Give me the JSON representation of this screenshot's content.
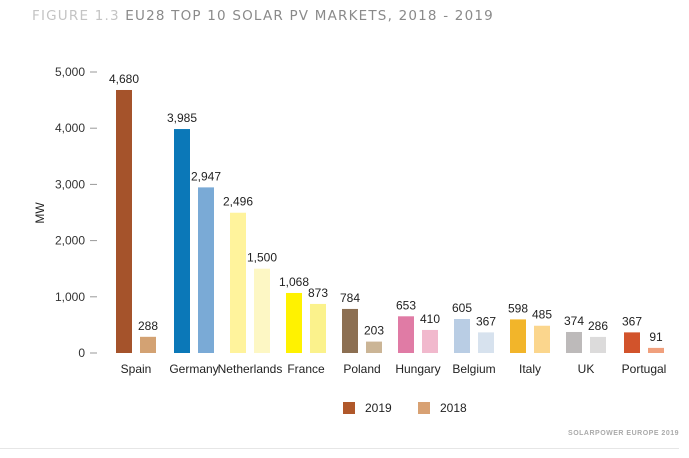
{
  "title": {
    "figure": "FIGURE 1.3",
    "text": "EU28 TOP 10 SOLAR PV MARKETS, 2018 - 2019"
  },
  "footer": "SOLARPOWER EUROPE 2019",
  "chart_data": {
    "type": "bar",
    "title": "EU28 TOP 10 SOLAR PV MARKETS, 2018 - 2019",
    "ylabel": "MW",
    "xlabel": "",
    "ylim": [
      0,
      5000
    ],
    "yticks": [
      0,
      1000,
      2000,
      3000,
      4000,
      5000
    ],
    "ytick_labels": [
      "0",
      "1,000",
      "2,000",
      "3,000",
      "4,000",
      "5,000"
    ],
    "grid": false,
    "legend": "bottom",
    "categories": [
      "Spain",
      "Germany",
      "Netherlands",
      "France",
      "Poland",
      "Hungary",
      "Belgium",
      "Italy",
      "UK",
      "Portugal"
    ],
    "series": [
      {
        "name": "2019",
        "values": [
          4680,
          3985,
          2496,
          1068,
          784,
          653,
          605,
          598,
          374,
          367
        ],
        "labels": [
          "4,680",
          "3,985",
          "2,496",
          "1,068",
          "784",
          "653",
          "605",
          "598",
          "374",
          "367"
        ],
        "colors": [
          "#a5532b",
          "#0b78b8",
          "#fff39c",
          "#fff200",
          "#8c6f52",
          "#e07ba5",
          "#b9cde4",
          "#f2b52a",
          "#bdbaba",
          "#d2532b"
        ],
        "legend_color": "#b0582a"
      },
      {
        "name": "2018",
        "values": [
          288,
          2947,
          1500,
          873,
          203,
          410,
          367,
          485,
          286,
          91
        ],
        "labels": [
          "288",
          "2,947",
          "1,500",
          "873",
          "203",
          "410",
          "367",
          "485",
          "286",
          "91"
        ],
        "colors": [
          "#d3a273",
          "#7aaad6",
          "#fdf7c4",
          "#fbf28c",
          "#cbb596",
          "#f1b9cd",
          "#d7e2ee",
          "#fbd68d",
          "#dcdbdb",
          "#f0a07d"
        ],
        "legend_color": "#d8a173"
      }
    ]
  }
}
